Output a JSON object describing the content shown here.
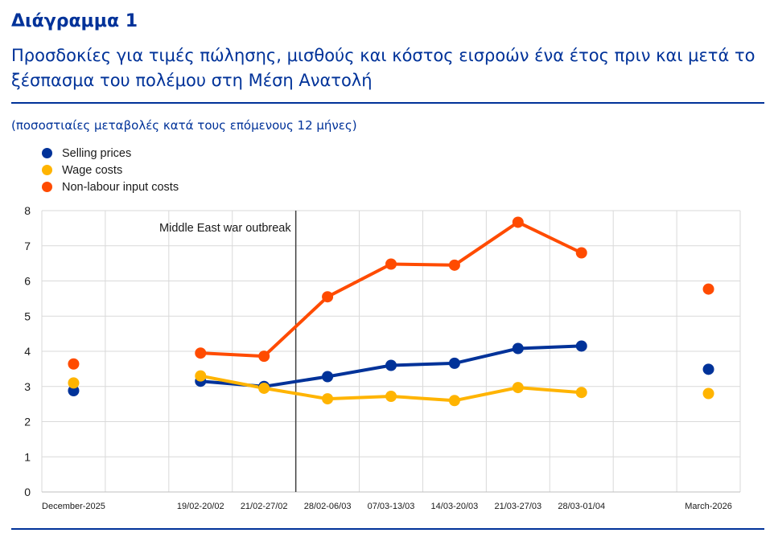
{
  "header": {
    "title": "Διάγραμμα 1",
    "subtitle": "Προσδοκίες για τιμές πώλησης, μισθούς και κόστος εισροών ένα έτος πριν και μετά το ξέσπασμα του πολέμου στη Μέση Ανατολή",
    "units": "(ποσοστιαίες μεταβολές κατά τους επόμενους 12 μήνες)"
  },
  "colors": {
    "selling": "#003299",
    "wage": "#FFB400",
    "nonlabour": "#FF4B00",
    "accent": "#003299"
  },
  "chart_data": {
    "type": "line",
    "categories": [
      "December-2025",
      "",
      "19/02-20/02",
      "21/02-27/02",
      "28/02-06/03",
      "07/03-13/03",
      "14/03-20/03",
      "21/03-27/03",
      "28/03-01/04",
      "",
      "March-2026"
    ],
    "series": [
      {
        "name": "Selling prices",
        "color": "#003299",
        "values": [
          2.88,
          null,
          3.15,
          3.0,
          3.28,
          3.6,
          3.66,
          4.08,
          4.15,
          null,
          3.49
        ]
      },
      {
        "name": "Wage costs",
        "color": "#FFB400",
        "values": [
          3.1,
          null,
          3.3,
          2.95,
          2.65,
          2.72,
          2.6,
          2.97,
          2.83,
          null,
          2.8
        ]
      },
      {
        "name": "Non-labour input costs",
        "color": "#FF4B00",
        "values": [
          3.64,
          null,
          3.95,
          3.86,
          5.55,
          6.48,
          6.45,
          7.67,
          6.8,
          null,
          5.77
        ]
      }
    ],
    "connected_range": [
      2,
      8
    ],
    "ylim": [
      0,
      8
    ],
    "yticks": [
      0,
      1,
      2,
      3,
      4,
      5,
      6,
      7,
      8
    ],
    "grid": true,
    "legend": "top-left",
    "annotation": {
      "text": "Middle East war outbreak",
      "position": "between 21/02-27/02 and 28/02-06/03"
    }
  }
}
